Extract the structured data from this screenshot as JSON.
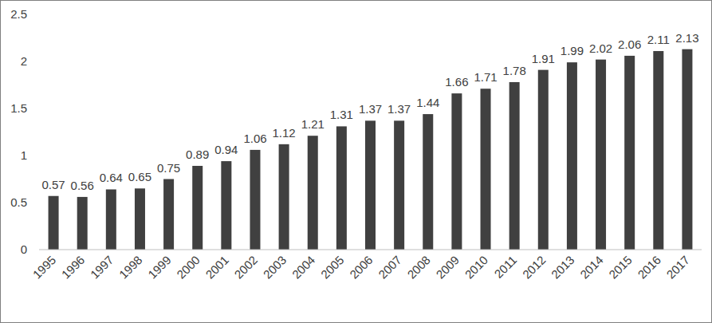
{
  "chart_data": {
    "type": "bar",
    "categories": [
      "1995",
      "1996",
      "1997",
      "1998",
      "1999",
      "2000",
      "2001",
      "2002",
      "2003",
      "2004",
      "2005",
      "2006",
      "2007",
      "2008",
      "2009",
      "2010",
      "2011",
      "2012",
      "2013",
      "2014",
      "2015",
      "2016",
      "2017"
    ],
    "values": [
      0.57,
      0.56,
      0.64,
      0.65,
      0.75,
      0.89,
      0.94,
      1.06,
      1.12,
      1.21,
      1.31,
      1.37,
      1.37,
      1.44,
      1.66,
      1.71,
      1.78,
      1.91,
      1.99,
      2.02,
      2.06,
      2.11,
      2.13
    ],
    "color": "#404040",
    "ylim": [
      0,
      2.5
    ],
    "yticks": [
      0,
      0.5,
      1,
      1.5,
      2,
      2.5
    ],
    "grid": false,
    "data_labels": true
  }
}
